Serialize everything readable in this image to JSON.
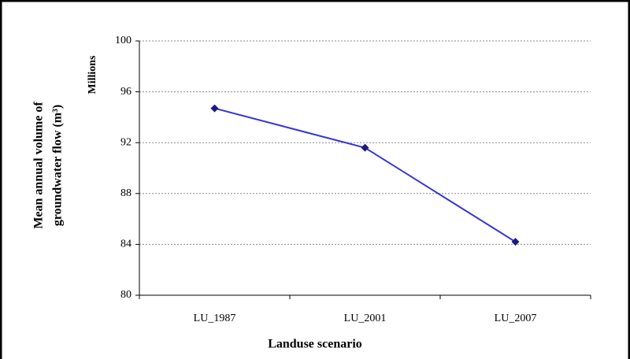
{
  "chart_data": {
    "type": "line",
    "x_label": "Landuse scenario",
    "y_label": [
      "Mean annual volume of",
      "groundwater flow (m³)"
    ],
    "y_unit_note": "Millions",
    "categories": [
      "LU_1987",
      "LU_2001",
      "LU_2007"
    ],
    "series": [
      {
        "color": "#3333dd",
        "marker_color": "#1a1a80",
        "values": [
          94.7,
          91.6,
          84.2
        ]
      }
    ],
    "ylim": [
      80,
      100
    ],
    "yticks": [
      80,
      84,
      88,
      92,
      96,
      100
    ],
    "grid": true
  }
}
